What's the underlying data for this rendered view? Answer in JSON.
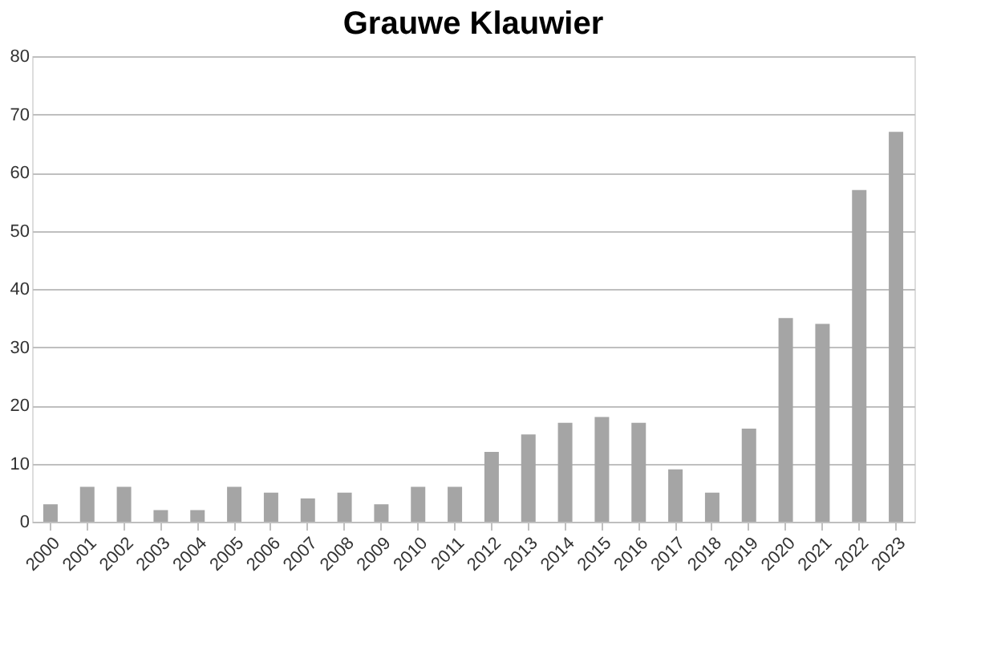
{
  "chart_data": {
    "type": "bar",
    "title": "Grauwe Klauwier",
    "categories": [
      "2000",
      "2001",
      "2002",
      "2003",
      "2004",
      "2005",
      "2006",
      "2007",
      "2008",
      "2009",
      "2010",
      "2011",
      "2012",
      "2013",
      "2014",
      "2015",
      "2016",
      "2017",
      "2018",
      "2019",
      "2020",
      "2021",
      "2022",
      "2023"
    ],
    "values": [
      3,
      6,
      6,
      2,
      2,
      6,
      5,
      4,
      5,
      3,
      6,
      6,
      12,
      15,
      17,
      18,
      17,
      9,
      5,
      16,
      35,
      34,
      57,
      67
    ],
    "color": "#a5a5a5",
    "ylim": [
      0,
      80
    ],
    "yticks": [
      0,
      10,
      20,
      30,
      40,
      50,
      60,
      70,
      80
    ],
    "grid": "y"
  }
}
